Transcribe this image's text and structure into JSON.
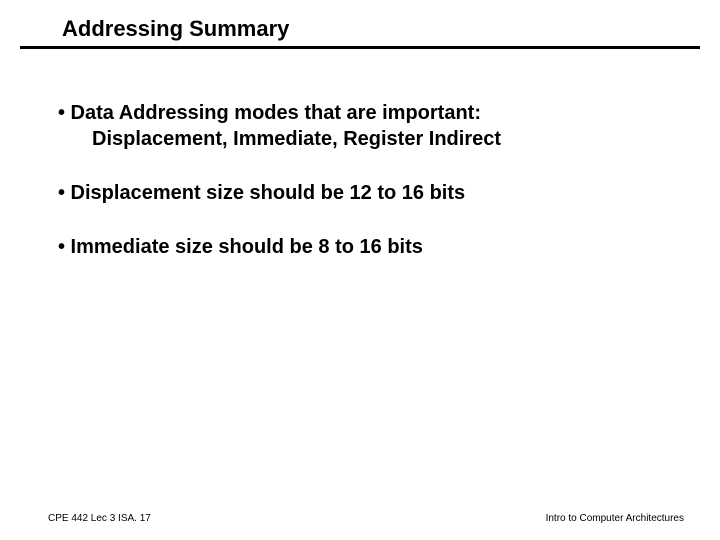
{
  "slide": {
    "title": "Addressing Summary",
    "title_fontsize": 22,
    "title_fontweight": "bold",
    "title_color": "#000000",
    "underline_color": "#000000",
    "underline_thickness": 3,
    "background_color": "#ffffff",
    "bullets": [
      {
        "main": "• Data Addressing modes that are important:",
        "sub": "Displacement, Immediate, Register Indirect"
      },
      {
        "main": "• Displacement size should be 12 to 16 bits",
        "sub": null
      },
      {
        "main": "• Immediate size should be 8 to 16 bits",
        "sub": null
      }
    ],
    "bullet_fontsize": 20,
    "bullet_fontweight": "bold",
    "bullet_color": "#000000",
    "footer_left": "CPE 442 Lec 3 ISA. 17",
    "footer_right": "Intro to Computer Architectures",
    "footer_fontsize": 10,
    "footer_color": "#000000"
  }
}
